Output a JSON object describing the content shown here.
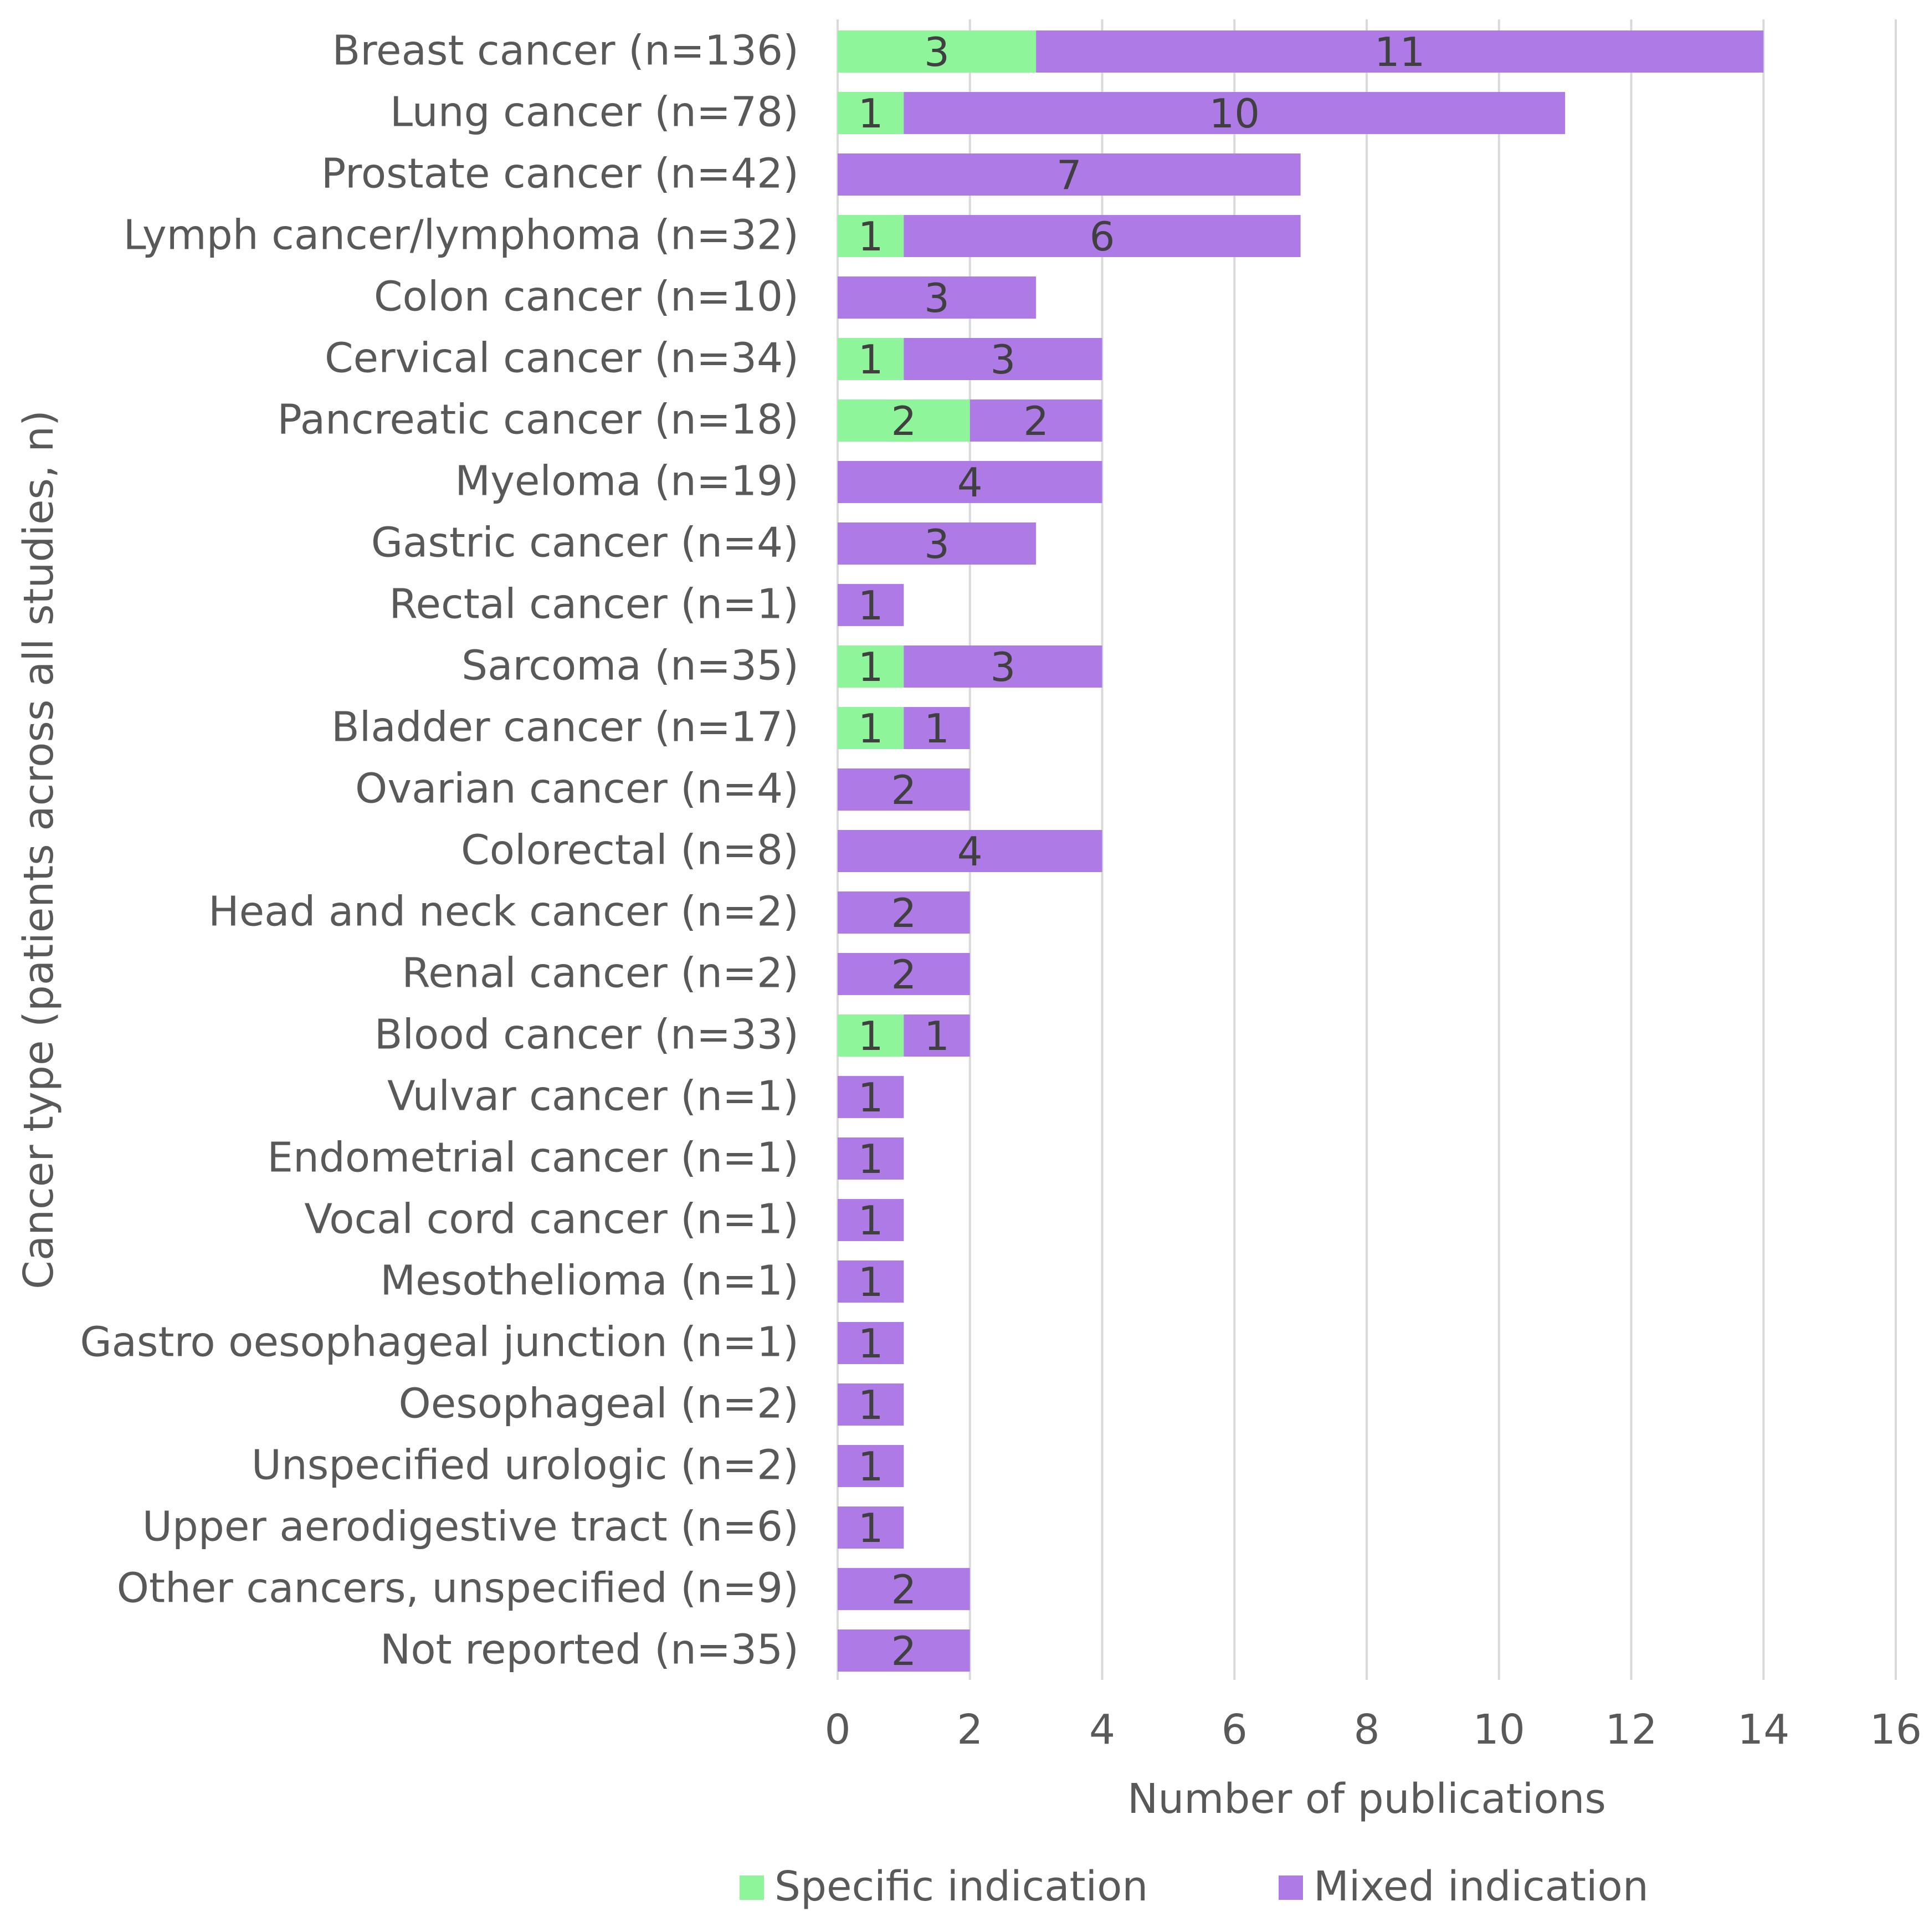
{
  "chart_data": {
    "type": "bar",
    "orientation": "horizontal",
    "stacked": true,
    "categories": [
      "Breast cancer (n=136)",
      "Lung cancer (n=78)",
      "Prostate cancer (n=42)",
      "Lymph cancer/lymphoma (n=32)",
      "Colon cancer (n=10)",
      "Cervical cancer (n=34)",
      "Pancreatic cancer (n=18)",
      "Myeloma (n=19)",
      "Gastric cancer (n=4)",
      "Rectal cancer (n=1)",
      "Sarcoma (n=35)",
      "Bladder cancer (n=17)",
      "Ovarian cancer (n=4)",
      "Colorectal (n=8)",
      "Head and neck cancer (n=2)",
      "Renal cancer (n=2)",
      "Blood cancer (n=33)",
      "Vulvar cancer (n=1)",
      "Endometrial cancer (n=1)",
      "Vocal cord cancer (n=1)",
      "Mesothelioma (n=1)",
      "Gastro oesophageal junction (n=1)",
      "Oesophageal (n=2)",
      "Unspecified urologic (n=2)",
      "Upper aerodigestive tract (n=6)",
      "Other cancers, unspecified (n=9)",
      "Not reported (n=35)"
    ],
    "series": [
      {
        "name": "Specific indication",
        "color": "#8ef59b",
        "values": [
          3,
          1,
          0,
          1,
          0,
          1,
          2,
          0,
          0,
          0,
          1,
          1,
          0,
          0,
          0,
          0,
          1,
          0,
          0,
          0,
          0,
          0,
          0,
          0,
          0,
          0,
          0
        ]
      },
      {
        "name": "Mixed indication",
        "color": "#ae7ae6",
        "values": [
          11,
          10,
          7,
          6,
          3,
          3,
          2,
          4,
          3,
          1,
          3,
          1,
          2,
          4,
          2,
          2,
          1,
          1,
          1,
          1,
          1,
          1,
          1,
          1,
          1,
          2,
          2
        ]
      }
    ],
    "xlabel": "Number of publications",
    "ylabel": "Cancer type (patients across all studies, n)",
    "xlim": [
      0,
      16
    ],
    "xticks": [
      0,
      2,
      4,
      6,
      8,
      10,
      12,
      14,
      16
    ],
    "grid": true,
    "legend_position": "bottom"
  }
}
